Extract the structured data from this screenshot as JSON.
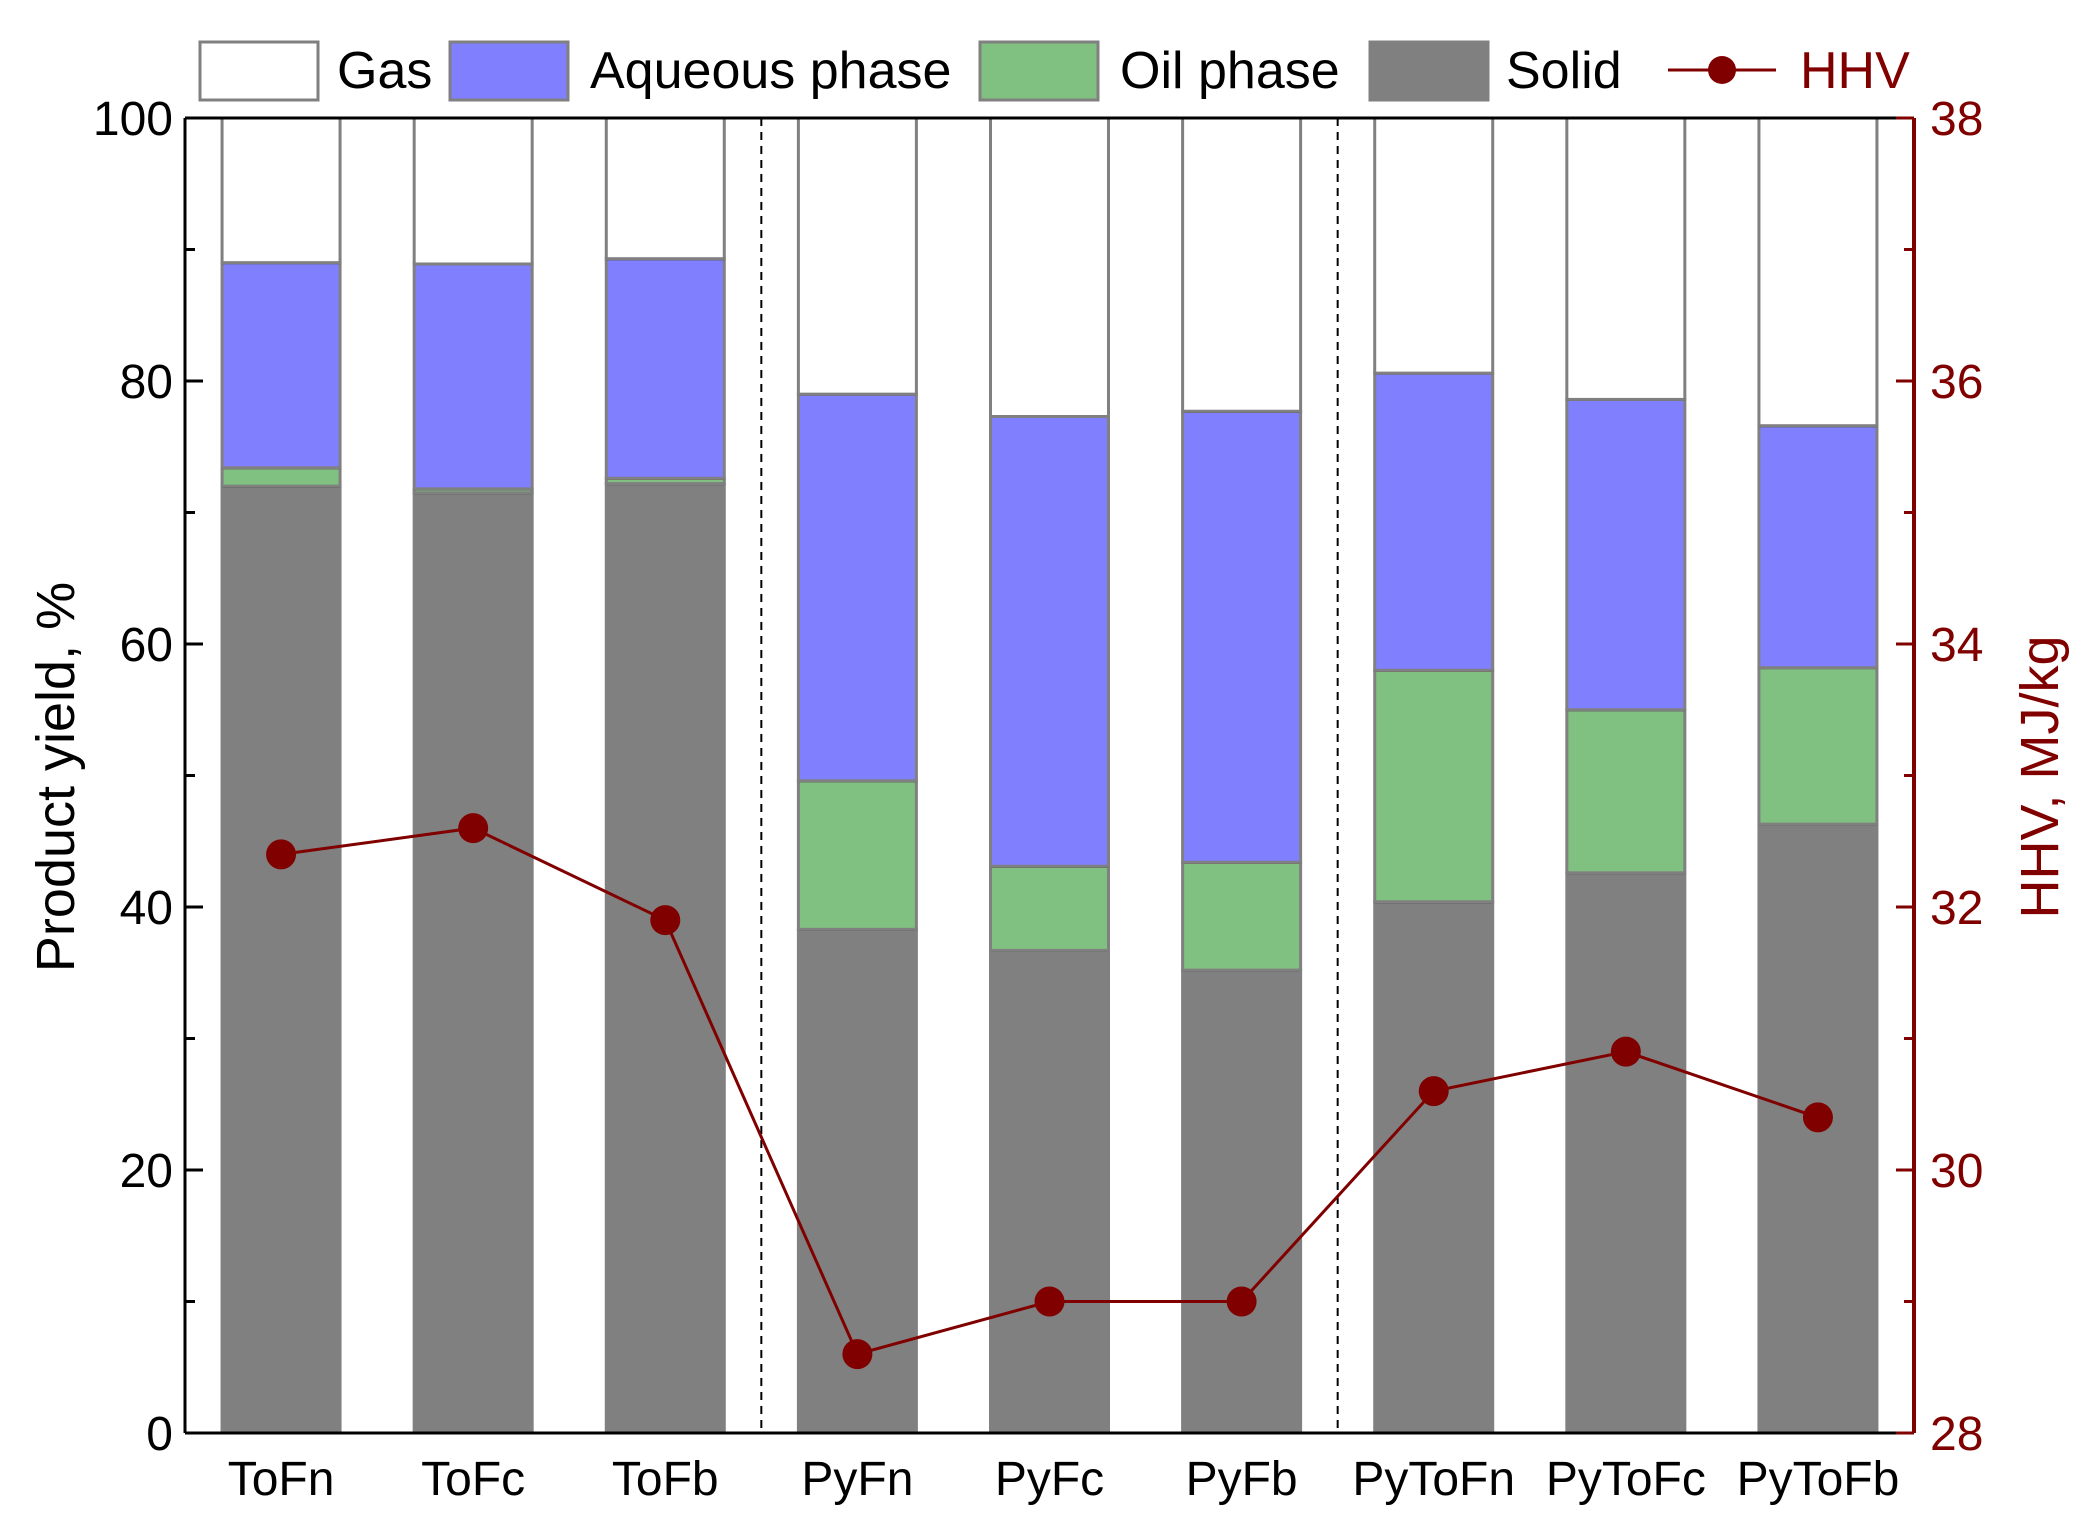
{
  "chart_data": {
    "type": "bar",
    "stacked": true,
    "categories": [
      "ToFn",
      "ToFc",
      "ToFb",
      "PyFn",
      "PyFc",
      "PyFb",
      "PyToFn",
      "PyToFc",
      "PyToFb"
    ],
    "series": [
      {
        "name": "Solid",
        "color": "#808080",
        "values": [
          72.0,
          71.5,
          72.2,
          38.3,
          36.7,
          35.2,
          40.4,
          42.6,
          46.3
        ]
      },
      {
        "name": "Oil phase",
        "color": "#80c080",
        "values": [
          1.4,
          0.3,
          0.4,
          11.3,
          6.4,
          8.2,
          17.6,
          12.4,
          11.9
        ]
      },
      {
        "name": "Aqueous phase",
        "color": "#8080ff",
        "values": [
          15.6,
          17.1,
          16.7,
          29.4,
          34.2,
          34.3,
          22.6,
          23.6,
          18.4
        ]
      },
      {
        "name": "Gas",
        "color": "#ffffff",
        "values": [
          11.0,
          11.1,
          10.7,
          21.0,
          22.7,
          22.3,
          19.4,
          21.4,
          23.4
        ]
      }
    ],
    "line_series": {
      "name": "HHV",
      "color": "#800000",
      "axis": "right",
      "values": [
        32.4,
        32.6,
        31.9,
        28.6,
        29.0,
        29.0,
        30.6,
        30.9,
        30.4
      ]
    },
    "ylabel": "Product yield, %",
    "ylim": [
      0,
      100
    ],
    "yticks": [
      0,
      20,
      40,
      60,
      80,
      100
    ],
    "y2label": "HHV, MJ/kg",
    "y2lim": [
      28,
      38
    ],
    "y2ticks": [
      28,
      30,
      32,
      34,
      36,
      38
    ],
    "group_separators_after": [
      2,
      5
    ],
    "legend": {
      "position": "top",
      "entries": [
        "Gas",
        "Aqueous phase",
        "Oil phase",
        "Solid",
        "HHV"
      ]
    }
  }
}
